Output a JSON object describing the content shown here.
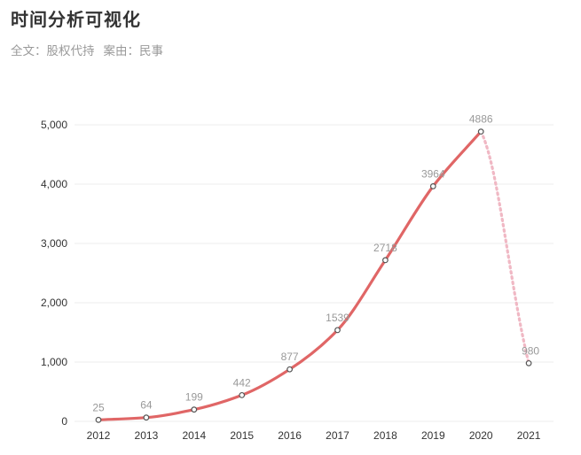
{
  "header": {
    "title": "时间分析可视化",
    "filter_fulltext": "全文：股权代持",
    "filter_case": "案由：民事"
  },
  "colors": {
    "line": "#e06666",
    "line_projected": "#f0b8c4",
    "axis_text": "#333333",
    "data_label": "#999999",
    "grid": "#eeeeee",
    "marker_stroke": "#555555"
  },
  "chart_data": {
    "type": "line",
    "categories": [
      "2012",
      "2013",
      "2014",
      "2015",
      "2016",
      "2017",
      "2018",
      "2019",
      "2020",
      "2021"
    ],
    "values": [
      25,
      64,
      199,
      442,
      877,
      1539,
      2718,
      3964,
      4886,
      980
    ],
    "projected_from_index": 8,
    "ylim": [
      0,
      5000
    ],
    "yticks": [
      0,
      1000,
      2000,
      3000,
      4000,
      5000
    ],
    "ytick_labels": [
      "0",
      "1,000",
      "2,000",
      "3,000",
      "4,000",
      "5,000"
    ],
    "grid": true,
    "smooth": true,
    "title": "",
    "xlabel": "",
    "ylabel": ""
  }
}
